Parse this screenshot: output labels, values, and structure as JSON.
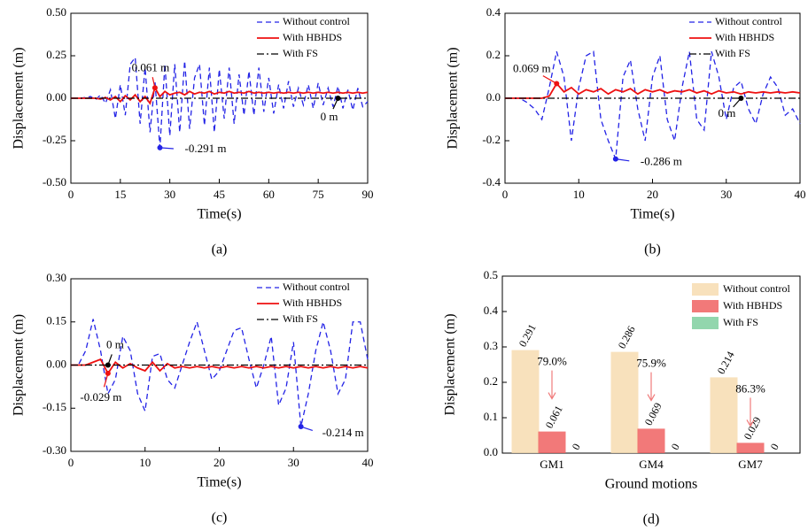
{
  "chart_data": [
    {
      "type": "line",
      "panel_label": "(a)",
      "x_label": "Time(s)",
      "y_label": "Displacement (m)",
      "x": [
        0,
        1.5,
        3,
        4.5,
        6,
        7.5,
        9,
        10.5,
        12,
        13.5,
        15,
        16.5,
        18,
        19.5,
        21,
        22.5,
        24,
        25.5,
        27,
        28.5,
        30,
        31.5,
        33,
        34.5,
        36,
        37.5,
        39,
        40.5,
        42,
        43.5,
        45,
        46.5,
        48,
        49.5,
        51,
        52.5,
        54,
        55.5,
        57,
        58.5,
        60,
        61.5,
        63,
        64.5,
        66,
        67.5,
        69,
        70.5,
        72,
        73.5,
        75,
        76.5,
        78,
        79.5,
        81,
        82.5,
        84,
        85.5,
        87,
        88.5,
        90
      ],
      "series": [
        {
          "name": "Without control",
          "color": "#2323e6",
          "linestyle": "dashed",
          "values": [
            0,
            0,
            0,
            0.005,
            0.01,
            -0.01,
            0.02,
            -0.03,
            0.05,
            -0.12,
            0.08,
            -0.1,
            0.2,
            0.24,
            -0.15,
            0.18,
            -0.2,
            0.1,
            -0.291,
            0.2,
            -0.22,
            0.2,
            -0.2,
            0.22,
            -0.18,
            0.12,
            0.2,
            -0.16,
            0.18,
            -0.2,
            0.17,
            -0.12,
            0.18,
            -0.15,
            0.14,
            -0.1,
            0.16,
            -0.1,
            0.18,
            -0.08,
            0.12,
            -0.09,
            0.08,
            -0.06,
            0.1,
            -0.05,
            0.06,
            -0.04,
            0.08,
            -0.06,
            0.09,
            -0.04,
            0.06,
            -0.05,
            0.07,
            -0.06,
            0.05,
            -0.07,
            0.06,
            -0.05,
            -0.02
          ]
        },
        {
          "name": "With HBHDS",
          "color": "#ee1111",
          "linestyle": "solid",
          "values": [
            0,
            0,
            0,
            0,
            0,
            0,
            -0.005,
            0.005,
            -0.01,
            0.01,
            -0.02,
            0.015,
            -0.01,
            0.02,
            -0.02,
            0.01,
            -0.03,
            0.061,
            0.01,
            0.04,
            0.02,
            0.03,
            0.035,
            0.02,
            0.04,
            0.025,
            0.035,
            0.03,
            0.04,
            0.025,
            0.035,
            0.03,
            0.04,
            0.03,
            0.035,
            0.03,
            0.04,
            0.03,
            0.035,
            0.03,
            0.035,
            0.03,
            0.035,
            0.03,
            0.035,
            0.03,
            0.035,
            0.03,
            0.035,
            0.03,
            0.035,
            0.03,
            0.035,
            0.03,
            0.035,
            0.03,
            0.035,
            0.03,
            0.035,
            0.03,
            0.035
          ]
        },
        {
          "name": "With FS",
          "color": "#000000",
          "linestyle": "dashdot",
          "values": [
            0,
            0,
            0,
            0,
            0,
            0,
            0,
            0,
            0,
            0,
            0,
            0,
            0,
            0,
            0,
            0,
            0,
            0,
            0,
            0,
            0,
            0,
            0,
            0,
            0,
            0,
            0,
            0,
            0,
            0,
            0,
            0,
            0,
            0,
            0,
            0,
            0,
            0,
            0,
            0,
            0,
            0,
            0,
            0,
            0,
            0,
            0,
            0,
            0,
            0,
            0,
            0,
            0,
            0,
            0,
            0,
            0,
            0,
            0,
            0,
            0
          ]
        }
      ],
      "xlim": [
        0,
        90
      ],
      "xticks": [
        0,
        15,
        30,
        45,
        60,
        75,
        90
      ],
      "ylim": [
        -0.5,
        0.5
      ],
      "yticks": [
        {
          "value": -0.5,
          "label": "-0.50"
        },
        -0.25,
        {
          "value": 0,
          "label": "0.00"
        },
        0.25,
        {
          "value": 0.5,
          "label": "0.50"
        }
      ],
      "legend": "upper right",
      "annotations": [
        {
          "text": "0.061 m",
          "x": 25.5,
          "y": 0.061,
          "color": "#ee1111"
        },
        {
          "text": "-0.291 m",
          "x": 27,
          "y": -0.291,
          "color": "#2323e6"
        },
        {
          "text": "0 m",
          "x": 81,
          "y": 0,
          "color": "#000000"
        }
      ]
    },
    {
      "type": "line",
      "panel_label": "(b)",
      "x_label": "Time(s)",
      "y_label": "Displacement (m)",
      "x": [
        0,
        1,
        2,
        3,
        4,
        5,
        6,
        7,
        8,
        9,
        10,
        11,
        12,
        13,
        14,
        15,
        16,
        17,
        18,
        19,
        20,
        21,
        22,
        23,
        24,
        25,
        26,
        27,
        28,
        29,
        30,
        31,
        32,
        33,
        34,
        35,
        36,
        37,
        38,
        39,
        40
      ],
      "series": [
        {
          "name": "Without control",
          "color": "#2323e6",
          "linestyle": "dashed",
          "values": [
            0,
            0,
            0,
            -0.02,
            -0.05,
            -0.1,
            0.05,
            0.22,
            0.1,
            -0.2,
            0.05,
            0.2,
            0.22,
            -0.1,
            -0.2,
            -0.286,
            0.1,
            0.18,
            -0.05,
            -0.2,
            0.1,
            0.2,
            -0.1,
            -0.2,
            0.05,
            0.22,
            -0.1,
            -0.15,
            0.22,
            0.1,
            -0.1,
            0.05,
            0.08,
            -0.05,
            -0.12,
            0.02,
            0.1,
            0.05,
            -0.08,
            -0.05,
            -0.12
          ]
        },
        {
          "name": "With HBHDS",
          "color": "#ee1111",
          "linestyle": "solid",
          "values": [
            0,
            0,
            0,
            0,
            0,
            0,
            0.01,
            0.069,
            0.03,
            0.05,
            0.02,
            0.04,
            0.03,
            0.045,
            0.02,
            0.04,
            0.03,
            0.045,
            0.02,
            0.04,
            0.03,
            0.04,
            0.025,
            0.035,
            0.03,
            0.04,
            0.025,
            0.035,
            0.02,
            0.035,
            0.025,
            0.03,
            0.02,
            0.03,
            0.025,
            0.03,
            0.025,
            0.03,
            0.025,
            0.03,
            0.025
          ]
        },
        {
          "name": "With FS",
          "color": "#000000",
          "linestyle": "dashdot",
          "values": [
            0,
            0,
            0,
            0,
            0,
            0,
            0,
            0,
            0,
            0,
            0,
            0,
            0,
            0,
            0,
            0,
            0,
            0,
            0,
            0,
            0,
            0,
            0,
            0,
            0,
            0,
            0,
            0,
            0,
            0,
            0,
            0,
            0,
            0,
            0,
            0,
            0,
            0,
            0,
            0,
            0
          ]
        }
      ],
      "xlim": [
        0,
        40
      ],
      "xticks": [
        0,
        10,
        20,
        30,
        40
      ],
      "ylim": [
        -0.4,
        0.4
      ],
      "yticks": [
        -0.4,
        -0.2,
        {
          "value": 0,
          "label": "0.0"
        },
        0.2,
        0.4
      ],
      "legend": "upper right",
      "annotations": [
        {
          "text": "0.069 m",
          "x": 7,
          "y": 0.069,
          "color": "#ee1111"
        },
        {
          "text": "-0.286 m",
          "x": 15,
          "y": -0.286,
          "color": "#2323e6"
        },
        {
          "text": "0 m",
          "x": 32,
          "y": 0,
          "color": "#000000"
        }
      ]
    },
    {
      "type": "line",
      "panel_label": "(c)",
      "x_label": "Time(s)",
      "y_label": "Displacement (m)",
      "x": [
        0,
        1,
        2,
        3,
        4,
        5,
        6,
        7,
        8,
        9,
        10,
        11,
        12,
        13,
        14,
        15,
        16,
        17,
        18,
        19,
        20,
        21,
        22,
        23,
        24,
        25,
        26,
        27,
        28,
        29,
        30,
        31,
        32,
        33,
        34,
        35,
        36,
        37,
        38,
        39,
        40
      ],
      "series": [
        {
          "name": "Without control",
          "color": "#2323e6",
          "linestyle": "dashed",
          "values": [
            0,
            0,
            0.05,
            0.16,
            0.05,
            -0.1,
            -0.05,
            0.1,
            0.05,
            -0.1,
            -0.16,
            0.03,
            0.04,
            -0.05,
            -0.08,
            0,
            0.08,
            0.15,
            0.05,
            -0.05,
            -0.02,
            0.05,
            0.12,
            0.13,
            0.02,
            -0.08,
            0,
            0.1,
            -0.14,
            -0.08,
            0.08,
            -0.214,
            -0.1,
            0.05,
            0.15,
            0.05,
            -0.1,
            -0.05,
            0.15,
            0.15,
            0.02
          ]
        },
        {
          "name": "With HBHDS",
          "color": "#ee1111",
          "linestyle": "solid",
          "values": [
            0,
            0,
            0,
            0.01,
            0.02,
            -0.029,
            0.01,
            -0.01,
            0.005,
            -0.01,
            -0.02,
            0.01,
            -0.02,
            0.005,
            -0.01,
            -0.005,
            -0.01,
            -0.005,
            -0.01,
            -0.005,
            -0.01,
            -0.005,
            -0.01,
            -0.005,
            -0.01,
            -0.005,
            -0.01,
            -0.005,
            -0.01,
            -0.005,
            -0.01,
            -0.005,
            -0.01,
            -0.005,
            -0.01,
            -0.005,
            -0.01,
            -0.005,
            -0.01,
            -0.005,
            -0.01
          ]
        },
        {
          "name": "With FS",
          "color": "#000000",
          "linestyle": "dashdot",
          "values": [
            0,
            0,
            0,
            0,
            0,
            0,
            0,
            0,
            0,
            0,
            0,
            0,
            0,
            0,
            0,
            0,
            0,
            0,
            0,
            0,
            0,
            0,
            0,
            0,
            0,
            0,
            0,
            0,
            0,
            0,
            0,
            0,
            0,
            0,
            0,
            0,
            0,
            0,
            0,
            0,
            0
          ]
        }
      ],
      "xlim": [
        0,
        40
      ],
      "xticks": [
        0,
        10,
        20,
        30,
        40
      ],
      "ylim": [
        -0.3,
        0.3
      ],
      "yticks": [
        {
          "value": -0.3,
          "label": "-0.30"
        },
        -0.15,
        {
          "value": 0,
          "label": "0.00"
        },
        0.15,
        {
          "value": 0.3,
          "label": "0.30"
        }
      ],
      "legend": "upper right",
      "annotations": [
        {
          "text": "0 m",
          "x": 5,
          "y": 0,
          "color": "#000000"
        },
        {
          "text": "-0.029 m",
          "x": 5,
          "y": -0.029,
          "color": "#ee1111"
        },
        {
          "text": "-0.214 m",
          "x": 31,
          "y": -0.214,
          "color": "#2323e6"
        }
      ]
    },
    {
      "type": "bar",
      "panel_label": "(d)",
      "x_label": "Ground motions",
      "y_label": "Displacement (m)",
      "categories": [
        "GM1",
        "GM4",
        "GM7"
      ],
      "series": [
        {
          "name": "Without control",
          "color": "#f7dcb0",
          "values": [
            0.291,
            0.286,
            0.214
          ]
        },
        {
          "name": "With HBHDS",
          "color": "#f06262",
          "values": [
            0.061,
            0.069,
            0.029
          ]
        },
        {
          "name": "With FS",
          "color": "#7fcf9f",
          "values": [
            0,
            0,
            0
          ]
        }
      ],
      "ylim": [
        0,
        0.5
      ],
      "yticks": [
        {
          "value": 0,
          "label": "0.0"
        },
        0.1,
        0.2,
        0.3,
        0.4,
        0.5
      ],
      "legend": "upper right",
      "annotations": [
        "79.0%",
        "75.9%",
        "86.3%"
      ],
      "annotation_color": "#f07a7a"
    }
  ]
}
